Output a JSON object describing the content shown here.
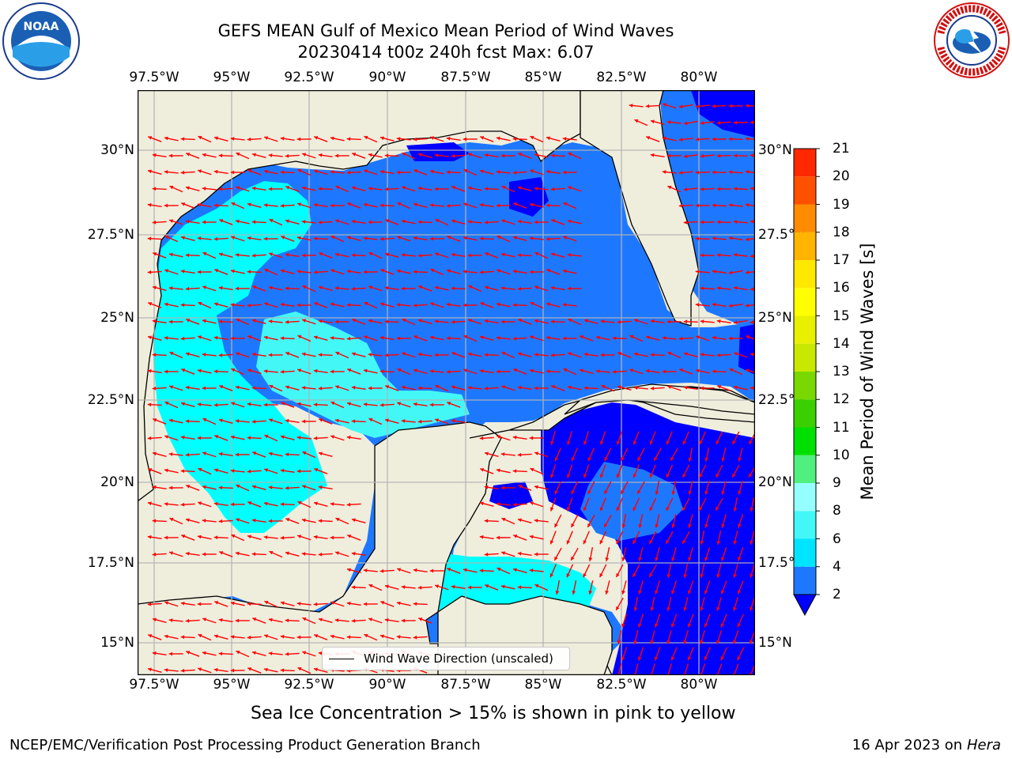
{
  "title_line1": "GEFS MEAN Gulf of Mexico Mean Period of Wind Waves",
  "title_line2": "20230414 t00z 240h fcst   Max: 6.07",
  "lon_labels": [
    "97.5°W",
    "95°W",
    "92.5°W",
    "90°W",
    "87.5°W",
    "85°W",
    "82.5°W",
    "80°W"
  ],
  "lat_labels": [
    "30°N",
    "27.5°N",
    "25°N",
    "22.5°N",
    "20°N",
    "17.5°N",
    "15°N"
  ],
  "right_lat_labels": [
    "30°N",
    "27.5°N",
    "25°N",
    "22.5°N",
    "20°N",
    "17.5°N",
    "15°N"
  ],
  "legend_label": "Wind Wave Direction (unscaled)",
  "colorbar": {
    "label": "Mean Period of Wind Waves [s]",
    "ticks": [
      "2",
      "4",
      "6",
      "8",
      "9",
      "10",
      "11",
      "12",
      "13",
      "14",
      "15",
      "16",
      "17",
      "18",
      "19",
      "20",
      "21"
    ],
    "colors": [
      "#1e78ff",
      "#00e4ff",
      "#43f7f7",
      "#95ffff",
      "#50f080",
      "#00e000",
      "#3ad000",
      "#78d800",
      "#c8e800",
      "#e8f000",
      "#ffff00",
      "#ffe800",
      "#ffb400",
      "#ff8c00",
      "#ff5000",
      "#ff2800",
      "#ff0000"
    ],
    "extend_color": "#0000ff"
  },
  "field_colors": {
    "land": "#efeddc",
    "dark_blue": "#0000ff",
    "mid_blue": "#1e78ff",
    "cyan": "#00ffff",
    "arrow": "#ff0000",
    "grid": "#b4b4b4"
  },
  "caption": "Sea Ice Concentration > 15% is shown in pink to yellow",
  "credit": "NCEP/EMC/Verification Post Processing Product Generation Branch",
  "date_text": "16 Apr 2023 on",
  "date_host": "Hera",
  "logos": {
    "noaa_text": "NOAA",
    "nws_text": "NATIONAL WEATHER SERVICE"
  }
}
